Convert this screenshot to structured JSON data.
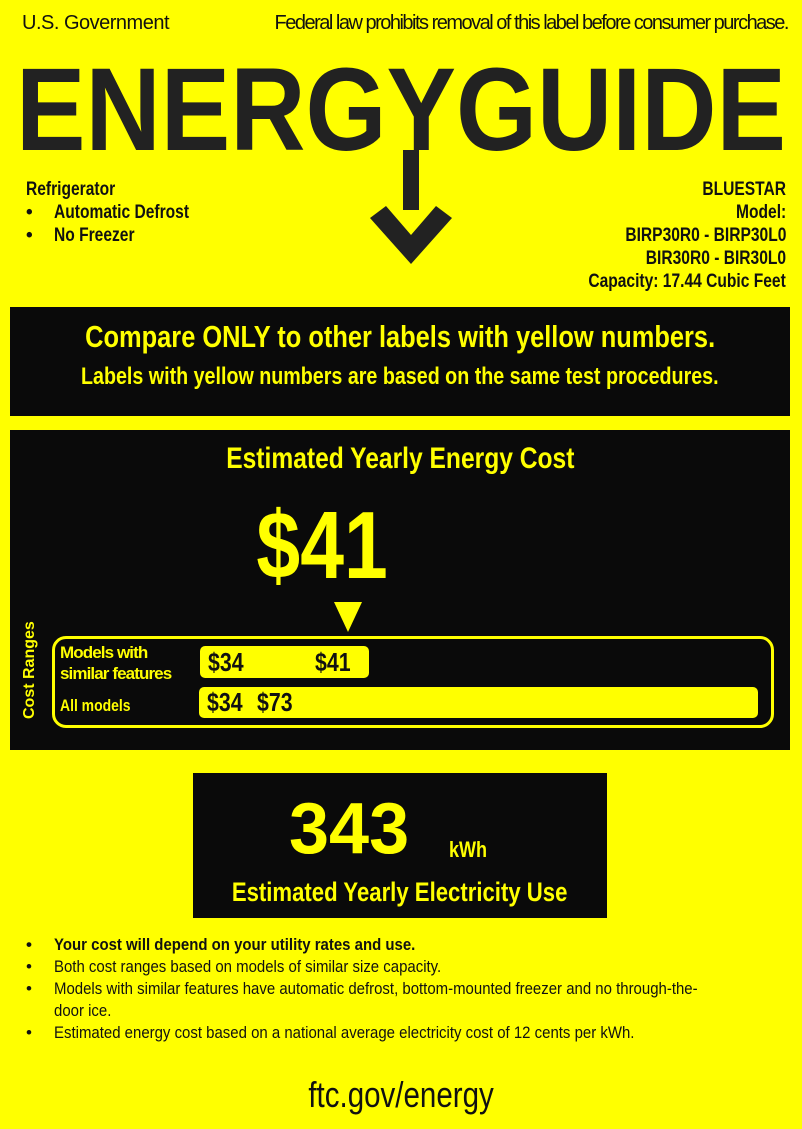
{
  "header": {
    "government": "U.S. Government",
    "notice": "Federal law prohibits removal of this label before consumer purchase."
  },
  "logo": {
    "text": "ENERGYGUIDE"
  },
  "product": {
    "type": "Refrigerator",
    "features": [
      "Automatic Defrost",
      "No Freezer"
    ]
  },
  "manufacturer": {
    "brand": "BLUESTAR",
    "model_label": "Model:",
    "models": [
      "BIRP30R0 - BIRP30L0",
      "BIR30R0 - BIR30L0"
    ],
    "capacity": "Capacity: 17.44 Cubic Feet"
  },
  "compare": {
    "line1": "Compare ONLY to other labels with yellow numbers.",
    "line2": "Labels with yellow numbers are based on the same test procedures."
  },
  "cost": {
    "title": "Estimated Yearly Energy Cost",
    "value": "$41",
    "value_number": 41,
    "ranges_label": "Cost Ranges",
    "similar": {
      "label_line1": "Models with",
      "label_line2": "similar features",
      "min": "$34",
      "max": "$41"
    },
    "all": {
      "label": "All models",
      "min": "$34",
      "max": "$73"
    }
  },
  "electricity": {
    "value": "343",
    "unit": "kWh",
    "label": "Estimated Yearly Electricity Use"
  },
  "notes": [
    "Your cost will depend on your utility rates and use.",
    "Both cost ranges based on models of similar size capacity.",
    "Models with similar features have automatic defrost, bottom-mounted freezer and no through-the-door ice.",
    "Estimated energy cost based on a national average electricity cost of 12 cents per kWh."
  ],
  "footer": {
    "url": "ftc.gov/energy"
  },
  "colors": {
    "background": "#ffff00",
    "panel": "#0a0a0a",
    "accent": "#ffff00"
  }
}
